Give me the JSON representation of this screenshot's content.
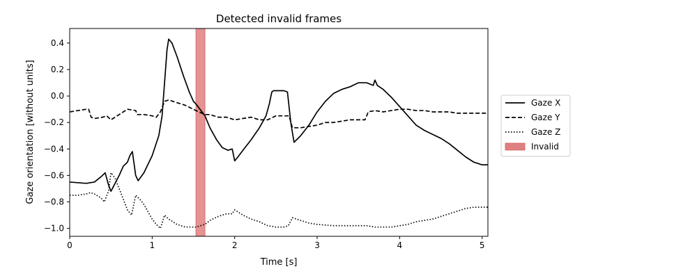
{
  "chart_data": {
    "type": "line",
    "title": "Detected invalid frames",
    "xlabel": "Time [s]",
    "ylabel": "Gaze orientation [without units]",
    "xlim": [
      0,
      5.07
    ],
    "ylim": [
      -1.06,
      0.51
    ],
    "xticks": [
      0,
      1,
      2,
      3,
      4,
      5
    ],
    "yticks": [
      -1.0,
      -0.8,
      -0.6,
      -0.4,
      -0.2,
      0.0,
      0.2,
      0.4
    ],
    "xtick_labels": [
      "0",
      "1",
      "2",
      "3",
      "4",
      "5"
    ],
    "ytick_labels": [
      "−1.0",
      "−0.8",
      "−0.6",
      "−0.4",
      "−0.2",
      "0.0",
      "0.2",
      "0.4"
    ],
    "grid": false,
    "legend_position": "outside-right",
    "invalid_regions": [
      {
        "name": "Invalid",
        "start": 1.53,
        "end": 1.64,
        "color": "#e07f7f"
      }
    ],
    "series": [
      {
        "name": "Gaze X",
        "style": "solid",
        "color": "#000000",
        "points": [
          [
            0,
            -0.65
          ],
          [
            0.2,
            -0.66
          ],
          [
            0.3,
            -0.65
          ],
          [
            0.38,
            -0.61
          ],
          [
            0.43,
            -0.58
          ],
          [
            0.47,
            -0.67
          ],
          [
            0.5,
            -0.72
          ],
          [
            0.55,
            -0.66
          ],
          [
            0.6,
            -0.6
          ],
          [
            0.65,
            -0.53
          ],
          [
            0.7,
            -0.5
          ],
          [
            0.73,
            -0.45
          ],
          [
            0.76,
            -0.42
          ],
          [
            0.8,
            -0.6
          ],
          [
            0.83,
            -0.64
          ],
          [
            0.9,
            -0.58
          ],
          [
            1.0,
            -0.45
          ],
          [
            1.08,
            -0.3
          ],
          [
            1.12,
            -0.15
          ],
          [
            1.15,
            0.1
          ],
          [
            1.18,
            0.35
          ],
          [
            1.2,
            0.43
          ],
          [
            1.24,
            0.4
          ],
          [
            1.3,
            0.3
          ],
          [
            1.38,
            0.15
          ],
          [
            1.45,
            0.03
          ],
          [
            1.5,
            -0.04
          ],
          [
            1.53,
            -0.06
          ],
          [
            1.64,
            -0.15
          ],
          [
            1.7,
            -0.24
          ],
          [
            1.78,
            -0.33
          ],
          [
            1.85,
            -0.39
          ],
          [
            1.92,
            -0.41
          ],
          [
            1.97,
            -0.4
          ],
          [
            2.0,
            -0.49
          ],
          [
            2.04,
            -0.46
          ],
          [
            2.1,
            -0.41
          ],
          [
            2.2,
            -0.33
          ],
          [
            2.3,
            -0.24
          ],
          [
            2.38,
            -0.15
          ],
          [
            2.42,
            -0.06
          ],
          [
            2.45,
            0.03
          ],
          [
            2.47,
            0.04
          ],
          [
            2.5,
            0.04
          ],
          [
            2.6,
            0.04
          ],
          [
            2.64,
            0.03
          ],
          [
            2.68,
            -0.2
          ],
          [
            2.72,
            -0.35
          ],
          [
            2.8,
            -0.3
          ],
          [
            2.9,
            -0.22
          ],
          [
            3.0,
            -0.12
          ],
          [
            3.1,
            -0.04
          ],
          [
            3.2,
            0.02
          ],
          [
            3.3,
            0.05
          ],
          [
            3.4,
            0.07
          ],
          [
            3.5,
            0.1
          ],
          [
            3.6,
            0.1
          ],
          [
            3.68,
            0.08
          ],
          [
            3.7,
            0.12
          ],
          [
            3.73,
            0.08
          ],
          [
            3.8,
            0.05
          ],
          [
            3.9,
            -0.01
          ],
          [
            4.0,
            -0.08
          ],
          [
            4.1,
            -0.15
          ],
          [
            4.2,
            -0.22
          ],
          [
            4.3,
            -0.26
          ],
          [
            4.4,
            -0.29
          ],
          [
            4.5,
            -0.32
          ],
          [
            4.6,
            -0.36
          ],
          [
            4.7,
            -0.41
          ],
          [
            4.8,
            -0.46
          ],
          [
            4.9,
            -0.5
          ],
          [
            5.0,
            -0.52
          ],
          [
            5.07,
            -0.52
          ]
        ]
      },
      {
        "name": "Gaze Y",
        "style": "dashed",
        "color": "#000000",
        "points": [
          [
            0,
            -0.12
          ],
          [
            0.1,
            -0.11
          ],
          [
            0.2,
            -0.1
          ],
          [
            0.23,
            -0.1
          ],
          [
            0.26,
            -0.16
          ],
          [
            0.3,
            -0.17
          ],
          [
            0.4,
            -0.16
          ],
          [
            0.45,
            -0.15
          ],
          [
            0.5,
            -0.18
          ],
          [
            0.6,
            -0.14
          ],
          [
            0.7,
            -0.1
          ],
          [
            0.8,
            -0.11
          ],
          [
            0.82,
            -0.14
          ],
          [
            0.9,
            -0.14
          ],
          [
            1.0,
            -0.15
          ],
          [
            1.05,
            -0.16
          ],
          [
            1.1,
            -0.12
          ],
          [
            1.15,
            -0.04
          ],
          [
            1.2,
            -0.03
          ],
          [
            1.3,
            -0.05
          ],
          [
            1.4,
            -0.07
          ],
          [
            1.5,
            -0.1
          ],
          [
            1.53,
            -0.11
          ],
          [
            1.64,
            -0.14
          ],
          [
            1.7,
            -0.14
          ],
          [
            1.8,
            -0.16
          ],
          [
            1.9,
            -0.16
          ],
          [
            2.0,
            -0.18
          ],
          [
            2.1,
            -0.17
          ],
          [
            2.2,
            -0.16
          ],
          [
            2.3,
            -0.18
          ],
          [
            2.4,
            -0.18
          ],
          [
            2.5,
            -0.15
          ],
          [
            2.6,
            -0.15
          ],
          [
            2.66,
            -0.15
          ],
          [
            2.7,
            -0.24
          ],
          [
            2.8,
            -0.24
          ],
          [
            2.9,
            -0.23
          ],
          [
            3.0,
            -0.22
          ],
          [
            3.1,
            -0.2
          ],
          [
            3.2,
            -0.2
          ],
          [
            3.3,
            -0.19
          ],
          [
            3.4,
            -0.18
          ],
          [
            3.5,
            -0.18
          ],
          [
            3.58,
            -0.18
          ],
          [
            3.62,
            -0.12
          ],
          [
            3.7,
            -0.11
          ],
          [
            3.8,
            -0.12
          ],
          [
            3.9,
            -0.11
          ],
          [
            4.0,
            -0.1
          ],
          [
            4.1,
            -0.1
          ],
          [
            4.2,
            -0.11
          ],
          [
            4.3,
            -0.11
          ],
          [
            4.4,
            -0.12
          ],
          [
            4.5,
            -0.12
          ],
          [
            4.6,
            -0.12
          ],
          [
            4.7,
            -0.13
          ],
          [
            4.8,
            -0.13
          ],
          [
            4.9,
            -0.13
          ],
          [
            5.0,
            -0.13
          ],
          [
            5.07,
            -0.13
          ]
        ]
      },
      {
        "name": "Gaze Z",
        "style": "dotted",
        "color": "#000000",
        "points": [
          [
            0,
            -0.75
          ],
          [
            0.1,
            -0.75
          ],
          [
            0.2,
            -0.74
          ],
          [
            0.25,
            -0.73
          ],
          [
            0.3,
            -0.74
          ],
          [
            0.38,
            -0.77
          ],
          [
            0.42,
            -0.8
          ],
          [
            0.47,
            -0.72
          ],
          [
            0.5,
            -0.58
          ],
          [
            0.55,
            -0.62
          ],
          [
            0.6,
            -0.7
          ],
          [
            0.65,
            -0.78
          ],
          [
            0.7,
            -0.86
          ],
          [
            0.75,
            -0.9
          ],
          [
            0.8,
            -0.75
          ],
          [
            0.85,
            -0.78
          ],
          [
            0.9,
            -0.82
          ],
          [
            1.0,
            -0.93
          ],
          [
            1.05,
            -0.97
          ],
          [
            1.1,
            -1.0
          ],
          [
            1.15,
            -0.9
          ],
          [
            1.2,
            -0.93
          ],
          [
            1.3,
            -0.97
          ],
          [
            1.4,
            -0.99
          ],
          [
            1.53,
            -0.99
          ],
          [
            1.64,
            -0.97
          ],
          [
            1.7,
            -0.94
          ],
          [
            1.8,
            -0.91
          ],
          [
            1.9,
            -0.89
          ],
          [
            1.97,
            -0.89
          ],
          [
            2.0,
            -0.86
          ],
          [
            2.05,
            -0.88
          ],
          [
            2.1,
            -0.9
          ],
          [
            2.2,
            -0.93
          ],
          [
            2.3,
            -0.95
          ],
          [
            2.4,
            -0.98
          ],
          [
            2.5,
            -0.99
          ],
          [
            2.6,
            -0.99
          ],
          [
            2.65,
            -0.98
          ],
          [
            2.7,
            -0.92
          ],
          [
            2.8,
            -0.94
          ],
          [
            2.9,
            -0.96
          ],
          [
            3.0,
            -0.97
          ],
          [
            3.2,
            -0.98
          ],
          [
            3.4,
            -0.98
          ],
          [
            3.6,
            -0.98
          ],
          [
            3.7,
            -0.99
          ],
          [
            3.8,
            -0.99
          ],
          [
            3.9,
            -0.99
          ],
          [
            4.0,
            -0.98
          ],
          [
            4.1,
            -0.97
          ],
          [
            4.2,
            -0.95
          ],
          [
            4.3,
            -0.94
          ],
          [
            4.4,
            -0.93
          ],
          [
            4.5,
            -0.91
          ],
          [
            4.6,
            -0.89
          ],
          [
            4.7,
            -0.87
          ],
          [
            4.8,
            -0.85
          ],
          [
            4.9,
            -0.84
          ],
          [
            5.0,
            -0.84
          ],
          [
            5.07,
            -0.84
          ]
        ]
      }
    ],
    "legend": {
      "entries": [
        {
          "name": "Gaze X",
          "kind": "line",
          "style": "solid"
        },
        {
          "name": "Gaze Y",
          "kind": "line",
          "style": "dashed"
        },
        {
          "name": "Gaze Z",
          "kind": "line",
          "style": "dotted"
        },
        {
          "name": "Invalid",
          "kind": "patch",
          "color": "#e07f7f"
        }
      ]
    }
  }
}
